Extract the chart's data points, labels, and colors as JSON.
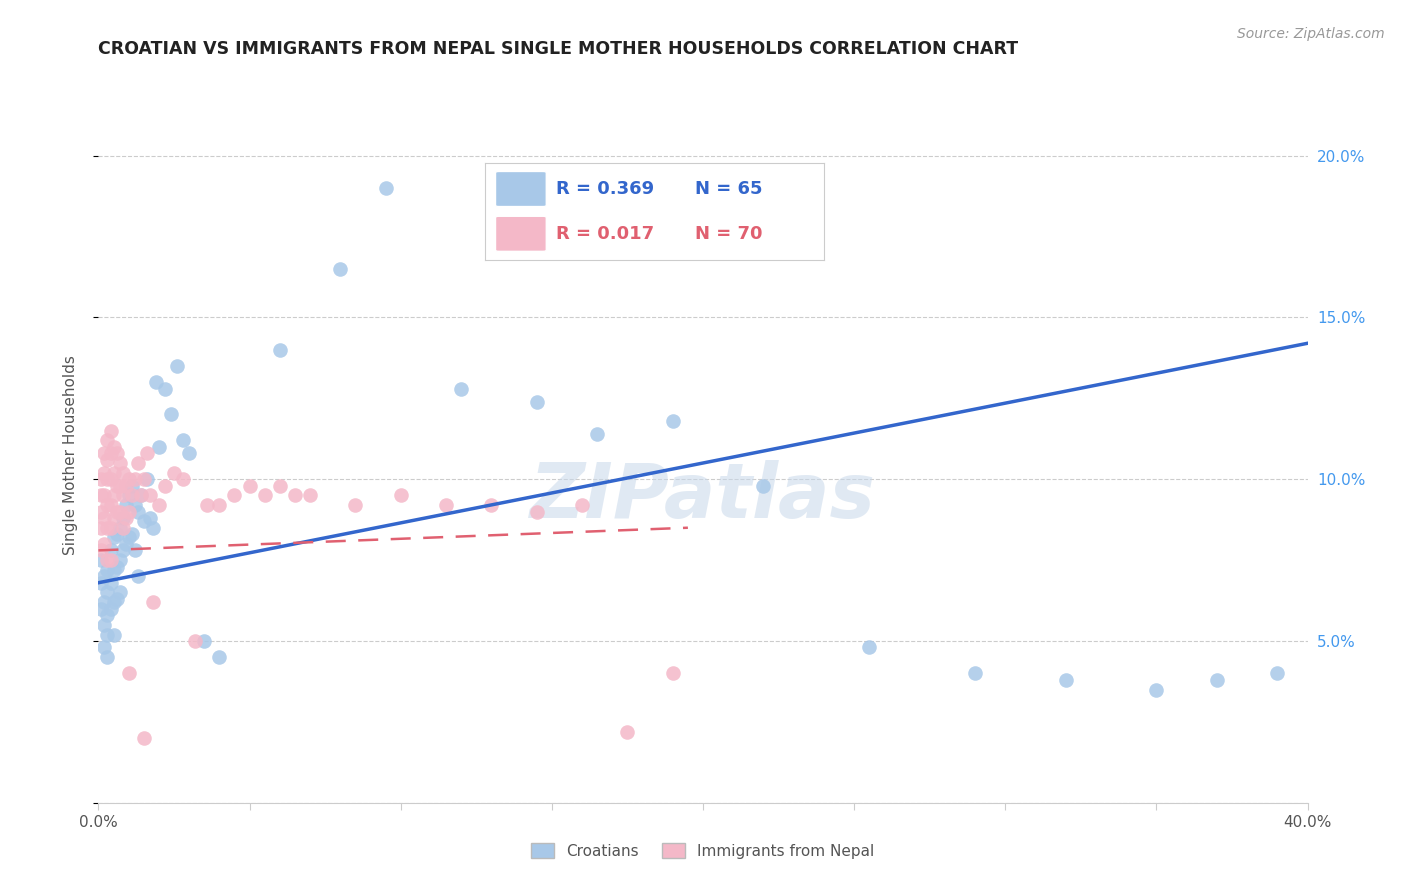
{
  "title": "CROATIAN VS IMMIGRANTS FROM NEPAL SINGLE MOTHER HOUSEHOLDS CORRELATION CHART",
  "source": "Source: ZipAtlas.com",
  "ylabel": "Single Mother Households",
  "xlim": [
    0.0,
    0.4
  ],
  "ylim": [
    0.0,
    0.215
  ],
  "xticks": [
    0.0,
    0.05,
    0.1,
    0.15,
    0.2,
    0.25,
    0.3,
    0.35,
    0.4
  ],
  "yticks": [
    0.0,
    0.05,
    0.1,
    0.15,
    0.2
  ],
  "blue_R": 0.369,
  "blue_N": 65,
  "pink_R": 0.017,
  "pink_N": 70,
  "blue_color": "#A8C8E8",
  "pink_color": "#F4B8C8",
  "blue_line_color": "#3366CC",
  "pink_line_color": "#E06070",
  "watermark": "ZIPatlas",
  "blue_scatter_x": [
    0.001,
    0.001,
    0.001,
    0.002,
    0.002,
    0.002,
    0.002,
    0.003,
    0.003,
    0.003,
    0.003,
    0.003,
    0.004,
    0.004,
    0.004,
    0.005,
    0.005,
    0.005,
    0.005,
    0.006,
    0.006,
    0.006,
    0.007,
    0.007,
    0.007,
    0.008,
    0.008,
    0.009,
    0.009,
    0.01,
    0.01,
    0.011,
    0.011,
    0.012,
    0.012,
    0.013,
    0.013,
    0.014,
    0.015,
    0.016,
    0.017,
    0.018,
    0.019,
    0.02,
    0.022,
    0.024,
    0.026,
    0.028,
    0.03,
    0.035,
    0.04,
    0.06,
    0.08,
    0.095,
    0.12,
    0.145,
    0.165,
    0.19,
    0.22,
    0.255,
    0.29,
    0.32,
    0.35,
    0.37,
    0.39
  ],
  "blue_scatter_y": [
    0.075,
    0.068,
    0.06,
    0.07,
    0.062,
    0.055,
    0.048,
    0.072,
    0.065,
    0.058,
    0.052,
    0.045,
    0.078,
    0.068,
    0.06,
    0.082,
    0.072,
    0.062,
    0.052,
    0.083,
    0.073,
    0.063,
    0.085,
    0.075,
    0.065,
    0.088,
    0.078,
    0.092,
    0.08,
    0.095,
    0.082,
    0.098,
    0.083,
    0.092,
    0.078,
    0.09,
    0.07,
    0.095,
    0.087,
    0.1,
    0.088,
    0.085,
    0.13,
    0.11,
    0.128,
    0.12,
    0.135,
    0.112,
    0.108,
    0.05,
    0.045,
    0.14,
    0.165,
    0.19,
    0.128,
    0.124,
    0.114,
    0.118,
    0.098,
    0.048,
    0.04,
    0.038,
    0.035,
    0.038,
    0.04
  ],
  "pink_scatter_x": [
    0.001,
    0.001,
    0.001,
    0.001,
    0.001,
    0.002,
    0.002,
    0.002,
    0.002,
    0.002,
    0.003,
    0.003,
    0.003,
    0.003,
    0.003,
    0.003,
    0.004,
    0.004,
    0.004,
    0.004,
    0.004,
    0.004,
    0.005,
    0.005,
    0.005,
    0.005,
    0.006,
    0.006,
    0.006,
    0.007,
    0.007,
    0.007,
    0.008,
    0.008,
    0.008,
    0.009,
    0.009,
    0.01,
    0.01,
    0.011,
    0.012,
    0.013,
    0.014,
    0.015,
    0.016,
    0.017,
    0.018,
    0.02,
    0.022,
    0.025,
    0.028,
    0.032,
    0.036,
    0.04,
    0.045,
    0.05,
    0.055,
    0.06,
    0.065,
    0.07,
    0.085,
    0.1,
    0.115,
    0.13,
    0.145,
    0.16,
    0.175,
    0.19,
    0.01,
    0.015
  ],
  "pink_scatter_y": [
    0.1,
    0.095,
    0.09,
    0.085,
    0.078,
    0.108,
    0.102,
    0.095,
    0.088,
    0.08,
    0.112,
    0.106,
    0.1,
    0.092,
    0.085,
    0.075,
    0.115,
    0.108,
    0.1,
    0.092,
    0.085,
    0.075,
    0.11,
    0.102,
    0.095,
    0.088,
    0.108,
    0.098,
    0.09,
    0.105,
    0.098,
    0.09,
    0.102,
    0.095,
    0.085,
    0.098,
    0.088,
    0.1,
    0.09,
    0.095,
    0.1,
    0.105,
    0.095,
    0.1,
    0.108,
    0.095,
    0.062,
    0.092,
    0.098,
    0.102,
    0.1,
    0.05,
    0.092,
    0.092,
    0.095,
    0.098,
    0.095,
    0.098,
    0.095,
    0.095,
    0.092,
    0.095,
    0.092,
    0.092,
    0.09,
    0.092,
    0.022,
    0.04,
    0.04,
    0.02
  ],
  "blue_line_x": [
    0.0,
    0.4
  ],
  "blue_line_y": [
    0.068,
    0.142
  ],
  "pink_line_x": [
    0.0,
    0.195
  ],
  "pink_line_y": [
    0.078,
    0.085
  ]
}
